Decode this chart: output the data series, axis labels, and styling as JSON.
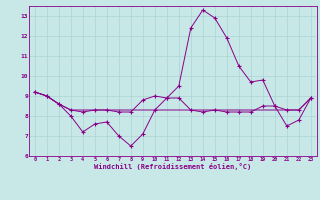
{
  "x": [
    0,
    1,
    2,
    3,
    4,
    5,
    6,
    7,
    8,
    9,
    10,
    11,
    12,
    13,
    14,
    15,
    16,
    17,
    18,
    19,
    20,
    21,
    22,
    23
  ],
  "line1": [
    9.2,
    9.0,
    8.6,
    8.0,
    7.2,
    7.6,
    7.7,
    7.0,
    6.5,
    7.1,
    8.3,
    8.9,
    8.9,
    8.3,
    8.2,
    8.3,
    8.2,
    8.2,
    8.2,
    8.5,
    8.5,
    8.3,
    8.3,
    8.9
  ],
  "line2": [
    9.2,
    9.0,
    8.6,
    8.3,
    8.2,
    8.3,
    8.3,
    8.2,
    8.2,
    8.8,
    9.0,
    8.9,
    9.5,
    12.4,
    13.3,
    12.9,
    11.9,
    10.5,
    9.7,
    9.8,
    8.5,
    7.5,
    7.8,
    8.9
  ],
  "line3": [
    9.2,
    9.0,
    8.6,
    8.3,
    8.3,
    8.3,
    8.3,
    8.3,
    8.3,
    8.3,
    8.3,
    8.3,
    8.3,
    8.3,
    8.3,
    8.3,
    8.3,
    8.3,
    8.3,
    8.3,
    8.3,
    8.3,
    8.3,
    8.9
  ],
  "line_color": "#880088",
  "bg_color": "#c8e8e8",
  "grid_color": "#aad4d4",
  "ylim": [
    6,
    13.5
  ],
  "yticks": [
    6,
    7,
    8,
    9,
    10,
    11,
    12,
    13
  ],
  "xlabel": "Windchill (Refroidissement éolien,°C)",
  "xlabel_color": "#880088",
  "tick_color": "#880088",
  "marker": "+",
  "markersize": 3,
  "linewidth": 0.7
}
